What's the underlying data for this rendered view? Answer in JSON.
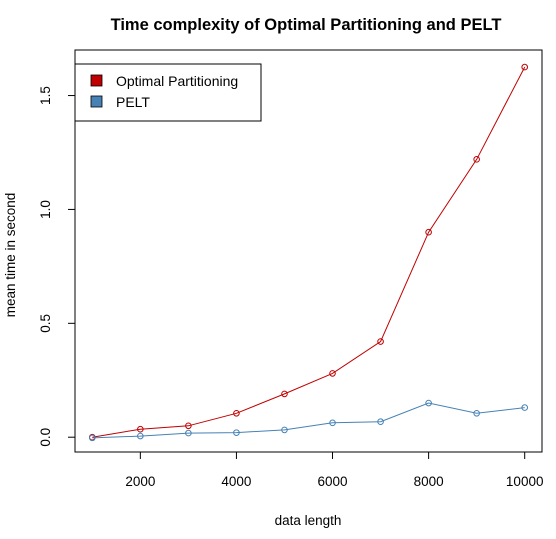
{
  "chart_data": {
    "type": "line",
    "title": "Time complexity of Optimal Partitioning and PELT",
    "xlabel": "data length",
    "ylabel": "mean time in second",
    "x": [
      1000,
      2000,
      3000,
      4000,
      5000,
      6000,
      7000,
      8000,
      9000,
      10000
    ],
    "xlim": [
      640,
      10360
    ],
    "ylim": [
      -0.065,
      1.7
    ],
    "xticks": [
      2000,
      4000,
      6000,
      8000,
      10000
    ],
    "xtick_labels": [
      "2000",
      "4000",
      "6000",
      "8000",
      "10000"
    ],
    "yticks": [
      0.0,
      0.5,
      1.0,
      1.5
    ],
    "ytick_labels": [
      "0.0",
      "0.5",
      "1.0",
      "1.5"
    ],
    "grid": false,
    "legend_position": "top-left",
    "series": [
      {
        "name": "Optimal Partitioning",
        "color": "#c00000",
        "values": [
          0.0,
          0.035,
          0.05,
          0.105,
          0.19,
          0.28,
          0.42,
          0.9,
          1.22,
          1.625
        ]
      },
      {
        "name": "PELT",
        "color": "#4682b4",
        "values": [
          -0.003,
          0.005,
          0.018,
          0.02,
          0.032,
          0.063,
          0.068,
          0.15,
          0.105,
          0.13
        ]
      }
    ]
  }
}
